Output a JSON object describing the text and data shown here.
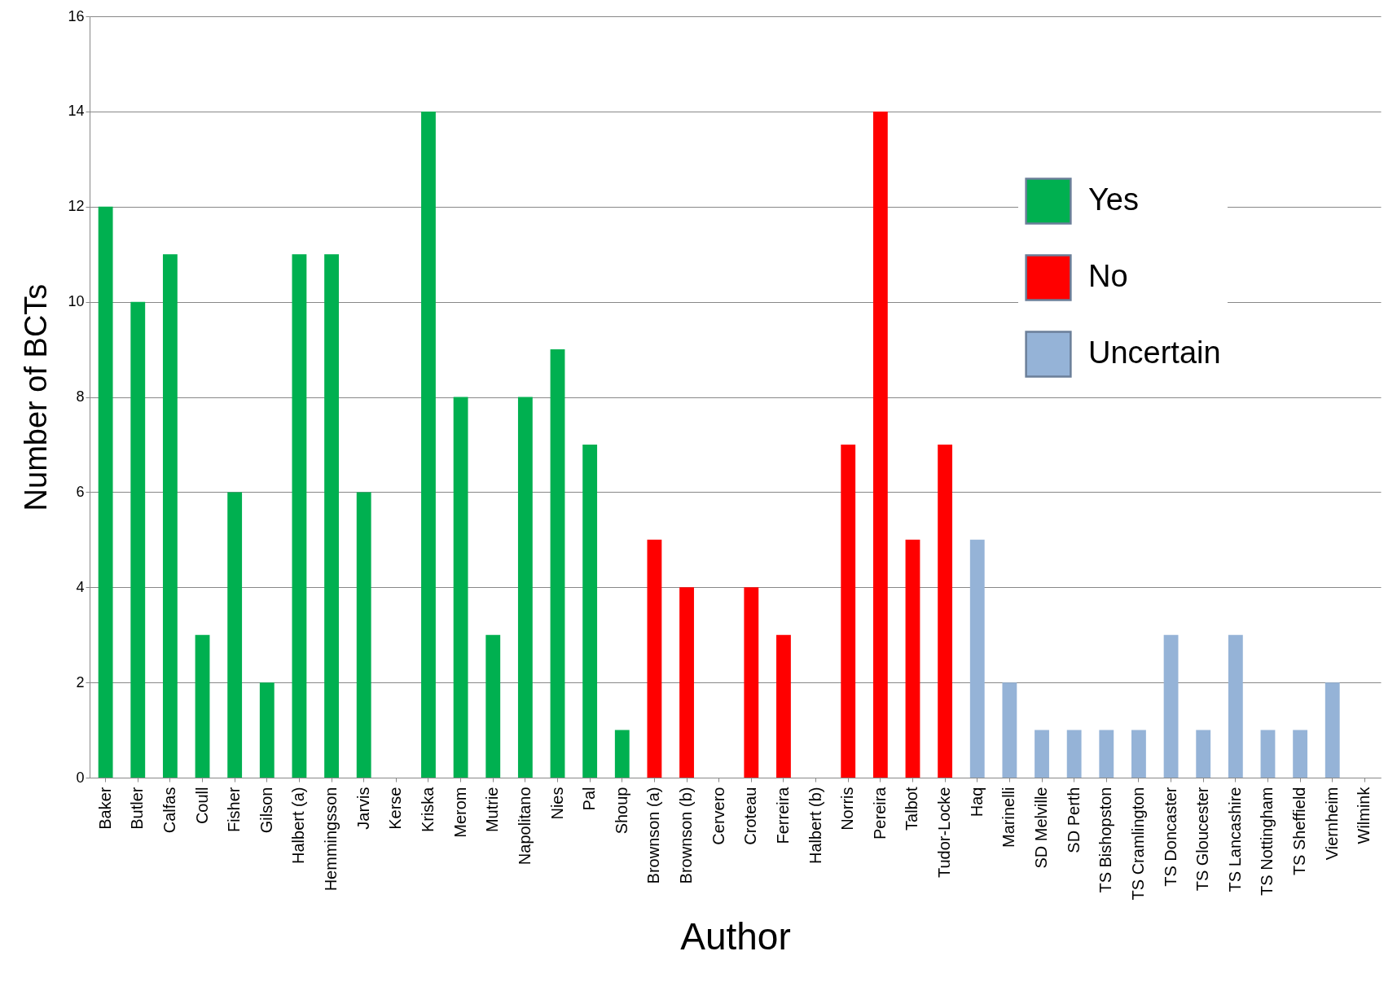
{
  "chart_data": {
    "type": "bar",
    "xlabel": "Author",
    "ylabel": "Number of BCTs",
    "categories": [
      "Baker",
      "Butler",
      "Calfas",
      "Coull",
      "Fisher",
      "Gilson",
      "Halbert (a)",
      "Hemmingsson",
      "Jarvis",
      "Kerse",
      "Kriska",
      "Merom",
      "Mutrie",
      "Napolitano",
      "Nies",
      "Pal",
      "Shoup",
      "Brownson (a)",
      "Brownson (b)",
      "Cervero",
      "Croteau",
      "Ferreira",
      "Halbert (b)",
      "Norris",
      "Pereira",
      "Talbot",
      "Tudor-Locke",
      "Haq",
      "Marinelli",
      "SD Melville",
      "SD Perth",
      "TS Bishopston",
      "TS Cramlington",
      "TS Doncaster",
      "TS Gloucester",
      "TS Lancashire",
      "TS Nottingham",
      "TS Sheffield",
      "Viernheim",
      "Wilmink"
    ],
    "series": [
      {
        "name": "Yes",
        "color": "#00b050",
        "values": [
          12,
          10,
          11,
          3,
          6,
          2,
          11,
          11,
          6,
          0,
          14,
          8,
          3,
          8,
          9,
          7,
          1,
          null,
          null,
          null,
          null,
          null,
          null,
          null,
          null,
          null,
          null,
          null,
          null,
          null,
          null,
          null,
          null,
          null,
          null,
          null,
          null,
          null,
          null,
          null
        ]
      },
      {
        "name": "No",
        "color": "#ff0000",
        "values": [
          null,
          null,
          null,
          null,
          null,
          null,
          null,
          null,
          null,
          null,
          null,
          null,
          null,
          null,
          null,
          null,
          null,
          5,
          4,
          0,
          4,
          3,
          0,
          7,
          14,
          5,
          7,
          null,
          null,
          null,
          null,
          null,
          null,
          null,
          null,
          null,
          null,
          null,
          null,
          null
        ]
      },
      {
        "name": "Uncertain",
        "color": "#95b3d7",
        "values": [
          null,
          null,
          null,
          null,
          null,
          null,
          null,
          null,
          null,
          null,
          null,
          null,
          null,
          null,
          null,
          null,
          null,
          null,
          null,
          null,
          null,
          null,
          null,
          null,
          null,
          null,
          null,
          5,
          2,
          1,
          1,
          1,
          1,
          3,
          1,
          3,
          1,
          1,
          2,
          0
        ]
      }
    ],
    "ylim": [
      0,
      16
    ],
    "yticks": [
      0,
      2,
      4,
      6,
      8,
      10,
      12,
      14,
      16
    ],
    "grid": "y",
    "legend": "top right"
  }
}
